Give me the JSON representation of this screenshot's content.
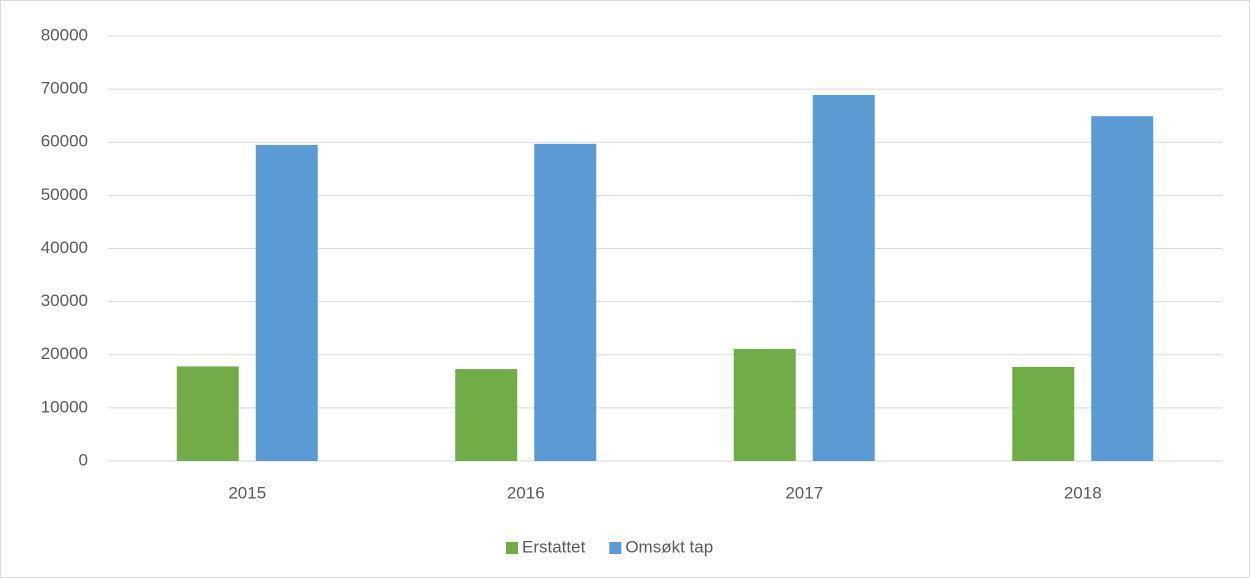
{
  "chart_data": {
    "type": "bar",
    "categories": [
      "2015",
      "2016",
      "2017",
      "2018"
    ],
    "series": [
      {
        "name": "Erstattet",
        "color": "#70ad47",
        "values": [
          17800,
          17300,
          21100,
          17700
        ]
      },
      {
        "name": "Omsøkt tap",
        "color": "#5b9bd5",
        "values": [
          59500,
          59700,
          68900,
          64900
        ]
      }
    ],
    "ylim": [
      0,
      80000
    ],
    "yticks": [
      0,
      10000,
      20000,
      30000,
      40000,
      50000,
      60000,
      70000,
      80000
    ],
    "grid": true,
    "legend": "bottom"
  }
}
